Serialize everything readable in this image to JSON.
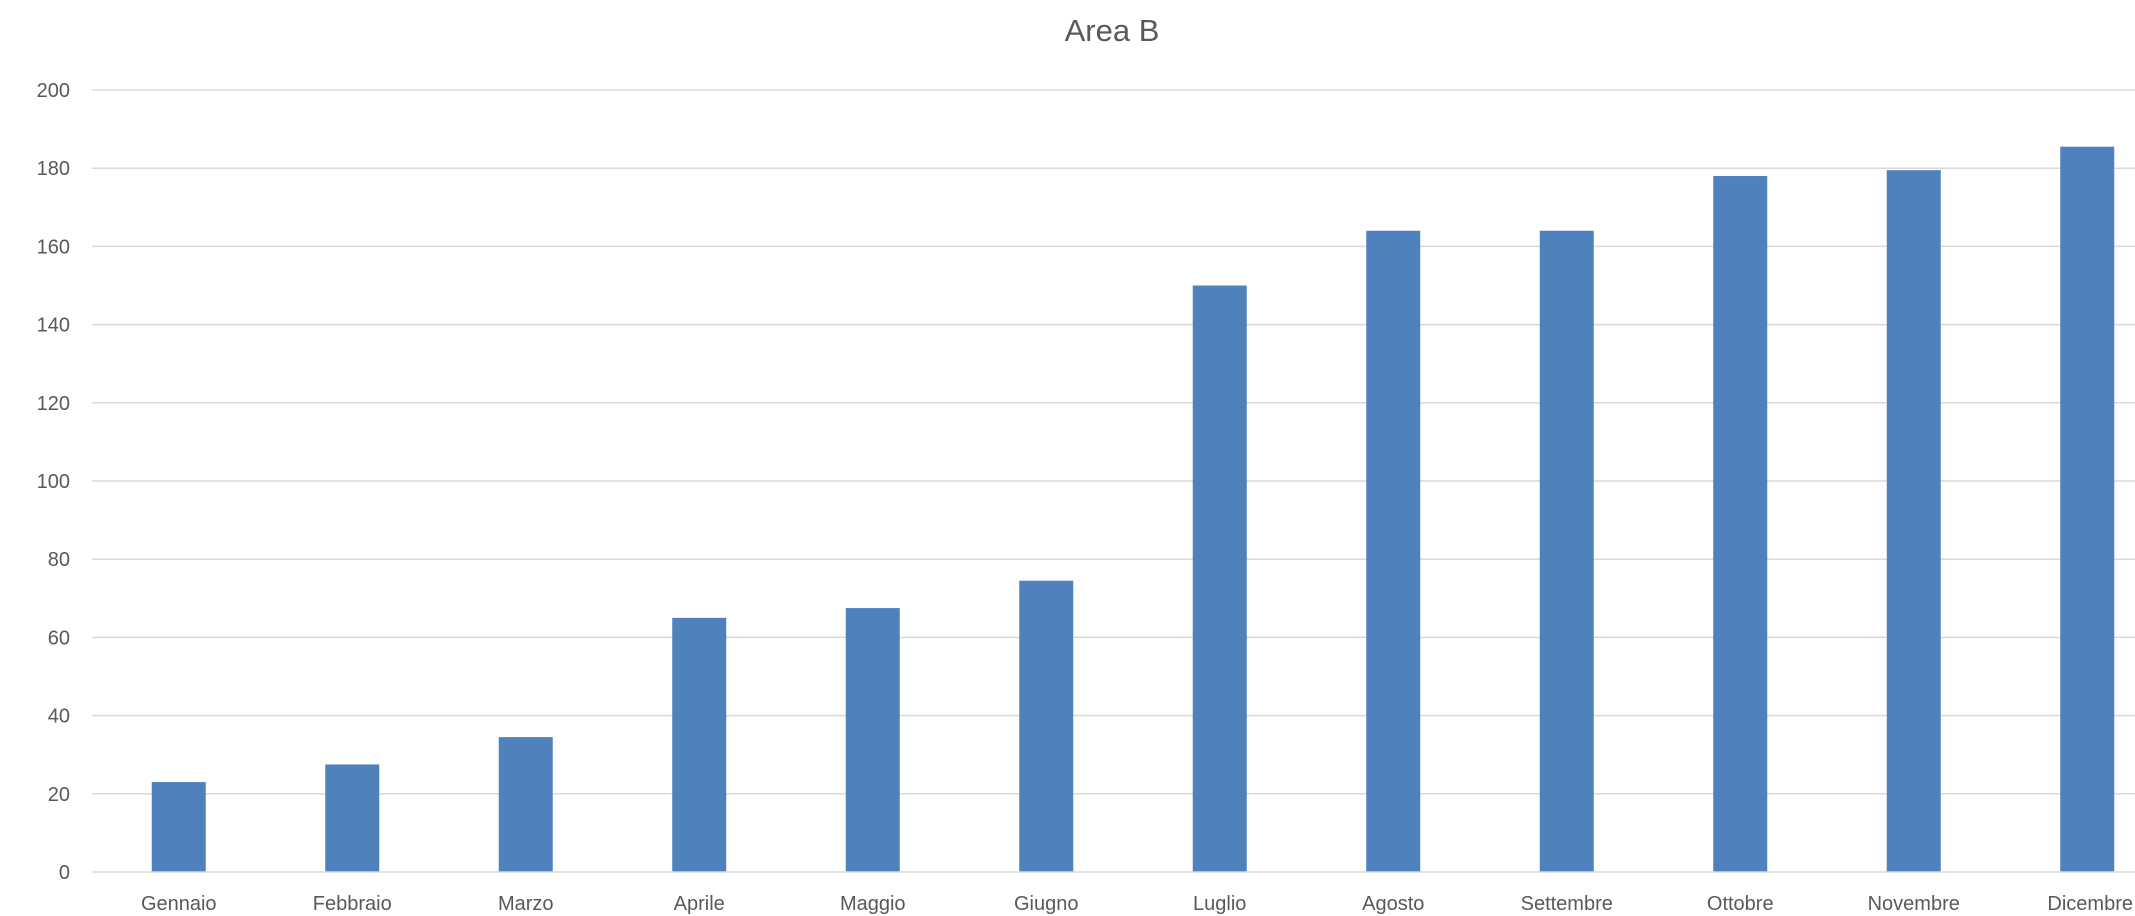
{
  "chart_data": {
    "type": "bar",
    "title": "Area B",
    "categories": [
      "Gennaio",
      "Febbraio",
      "Marzo",
      "Aprile",
      "Maggio",
      "Giugno",
      "Luglio",
      "Agosto",
      "Settembre",
      "Ottobre",
      "Novembre",
      "Dicembre"
    ],
    "series": [
      {
        "values": [
          23,
          27.5,
          34.5,
          65,
          67.5,
          74.5,
          150,
          164,
          164,
          178,
          179.5,
          185.5
        ]
      }
    ],
    "xlabel": "",
    "ylabel": "",
    "ylim": [
      0,
      200
    ],
    "yticks": [
      0,
      20,
      40,
      60,
      80,
      100,
      120,
      140,
      160,
      180,
      200
    ],
    "ytick_labels": [
      "0",
      "20",
      "40",
      "60",
      "80",
      "100",
      "120",
      "140",
      "160",
      "180",
      "200"
    ],
    "grid": true,
    "legend": "none",
    "colors": {
      "bar": "#4f81bd",
      "grid": "#d9d9d9",
      "text": "#595959"
    }
  }
}
